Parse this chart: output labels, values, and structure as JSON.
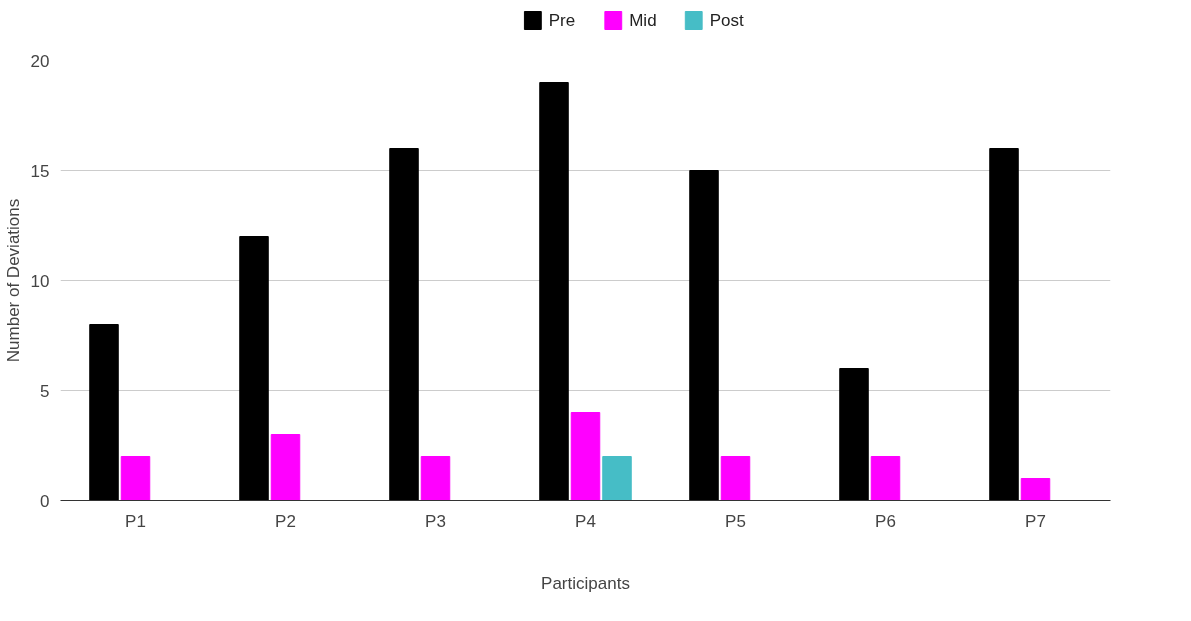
{
  "chart_data": {
    "type": "bar",
    "xlabel": "Participants",
    "ylabel": "Number of Deviations",
    "categories": [
      "P1",
      "P2",
      "P3",
      "P4",
      "P5",
      "P6",
      "P7"
    ],
    "series": [
      {
        "name": "Pre",
        "color": "#000000",
        "values": [
          8,
          12,
          16,
          19,
          15,
          6,
          16
        ]
      },
      {
        "name": "Mid",
        "color": "#ff00ff",
        "values": [
          2,
          3,
          2,
          4,
          2,
          2,
          1
        ]
      },
      {
        "name": "Post",
        "color": "#46bdc6",
        "values": [
          null,
          null,
          null,
          2,
          null,
          null,
          null
        ]
      }
    ],
    "ylim": [
      0,
      20
    ],
    "yticks": [
      0,
      5,
      10,
      15,
      20
    ],
    "grid": "y",
    "legend": "top"
  }
}
